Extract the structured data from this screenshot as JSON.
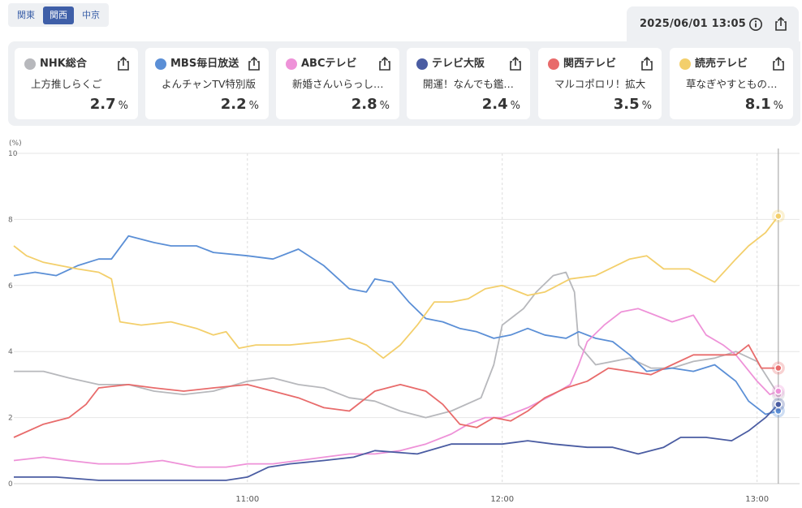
{
  "region_tabs": [
    {
      "label": "関東",
      "active": false
    },
    {
      "label": "関西",
      "active": true
    },
    {
      "label": "中京",
      "active": false
    }
  ],
  "timestamp": "2025/06/01 13:05",
  "icons": {
    "info": "info-icon",
    "share": "share-icon"
  },
  "channels": [
    {
      "name": "NHK総合",
      "program": "上方推しらくご",
      "value": "2.7",
      "unit": "%",
      "color": "#b7b8bc"
    },
    {
      "name": "MBS毎日放送",
      "program": "よんチャンTV特別版",
      "value": "2.2",
      "unit": "%",
      "color": "#5b8fd6"
    },
    {
      "name": "ABCテレビ",
      "program": "新婚さんいらっしゃい！",
      "value": "2.8",
      "unit": "%",
      "color": "#ee92d8"
    },
    {
      "name": "テレビ大阪",
      "program": "開運！なんでも鑑定団",
      "value": "2.4",
      "unit": "%",
      "color": "#4a5ca2"
    },
    {
      "name": "関西テレビ",
      "program": "マルコポロリ！拡大",
      "value": "3.5",
      "unit": "%",
      "color": "#e86b6b"
    },
    {
      "name": "読売テレビ",
      "program": "草なぎやすとものうたコント",
      "value": "8.1",
      "unit": "%",
      "color": "#f3cf6b"
    }
  ],
  "chart_data": {
    "type": "line",
    "ylabel": "(%)",
    "ylim": [
      0,
      10
    ],
    "yticks": [
      "0",
      "2",
      "4",
      "6",
      "8",
      "10"
    ],
    "xlim": [
      "10:05",
      "13:10"
    ],
    "xticks": [
      {
        "t": "11:00",
        "label": "11:00"
      },
      {
        "t": "12:00",
        "label": "12:00"
      },
      {
        "t": "13:00",
        "label": "13:00"
      }
    ],
    "current_time": "13:05",
    "series": [
      {
        "name": "NHK総合",
        "color": "#b7b8bc",
        "points": [
          [
            "10:05",
            3.4
          ],
          [
            "10:12",
            3.4
          ],
          [
            "10:18",
            3.2
          ],
          [
            "10:25",
            3.0
          ],
          [
            "10:32",
            3.0
          ],
          [
            "10:38",
            2.8
          ],
          [
            "10:45",
            2.7
          ],
          [
            "10:52",
            2.8
          ],
          [
            "11:00",
            3.1
          ],
          [
            "11:06",
            3.2
          ],
          [
            "11:12",
            3.0
          ],
          [
            "11:18",
            2.9
          ],
          [
            "11:24",
            2.6
          ],
          [
            "11:30",
            2.5
          ],
          [
            "11:36",
            2.2
          ],
          [
            "11:42",
            2.0
          ],
          [
            "11:48",
            2.2
          ],
          [
            "11:55",
            2.6
          ],
          [
            "11:58",
            3.6
          ],
          [
            "12:00",
            4.8
          ],
          [
            "12:05",
            5.3
          ],
          [
            "12:08",
            5.8
          ],
          [
            "12:12",
            6.3
          ],
          [
            "12:15",
            6.4
          ],
          [
            "12:17",
            5.8
          ],
          [
            "12:18",
            4.2
          ],
          [
            "12:22",
            3.6
          ],
          [
            "12:30",
            3.8
          ],
          [
            "12:35",
            3.5
          ],
          [
            "12:40",
            3.5
          ],
          [
            "12:45",
            3.7
          ],
          [
            "12:50",
            3.8
          ],
          [
            "12:55",
            4.0
          ],
          [
            "13:00",
            3.7
          ],
          [
            "13:05",
            2.7
          ]
        ]
      },
      {
        "name": "MBS毎日放送",
        "color": "#5b8fd6",
        "points": [
          [
            "10:05",
            6.3
          ],
          [
            "10:10",
            6.4
          ],
          [
            "10:15",
            6.3
          ],
          [
            "10:20",
            6.6
          ],
          [
            "10:25",
            6.8
          ],
          [
            "10:28",
            6.8
          ],
          [
            "10:32",
            7.5
          ],
          [
            "10:38",
            7.3
          ],
          [
            "10:42",
            7.2
          ],
          [
            "10:48",
            7.2
          ],
          [
            "10:52",
            7.0
          ],
          [
            "11:00",
            6.9
          ],
          [
            "11:06",
            6.8
          ],
          [
            "11:12",
            7.1
          ],
          [
            "11:18",
            6.6
          ],
          [
            "11:24",
            5.9
          ],
          [
            "11:28",
            5.8
          ],
          [
            "11:30",
            6.2
          ],
          [
            "11:34",
            6.1
          ],
          [
            "11:38",
            5.5
          ],
          [
            "11:42",
            5.0
          ],
          [
            "11:46",
            4.9
          ],
          [
            "11:50",
            4.7
          ],
          [
            "11:54",
            4.6
          ],
          [
            "11:58",
            4.4
          ],
          [
            "12:02",
            4.5
          ],
          [
            "12:06",
            4.7
          ],
          [
            "12:10",
            4.5
          ],
          [
            "12:15",
            4.4
          ],
          [
            "12:18",
            4.6
          ],
          [
            "12:22",
            4.4
          ],
          [
            "12:26",
            4.3
          ],
          [
            "12:30",
            3.9
          ],
          [
            "12:34",
            3.4
          ],
          [
            "12:40",
            3.5
          ],
          [
            "12:45",
            3.4
          ],
          [
            "12:50",
            3.6
          ],
          [
            "12:55",
            3.1
          ],
          [
            "12:58",
            2.5
          ],
          [
            "13:02",
            2.1
          ],
          [
            "13:05",
            2.2
          ]
        ]
      },
      {
        "name": "ABCテレビ",
        "color": "#ee92d8",
        "points": [
          [
            "10:05",
            0.7
          ],
          [
            "10:12",
            0.8
          ],
          [
            "10:18",
            0.7
          ],
          [
            "10:25",
            0.6
          ],
          [
            "10:32",
            0.6
          ],
          [
            "10:40",
            0.7
          ],
          [
            "10:48",
            0.5
          ],
          [
            "10:55",
            0.5
          ],
          [
            "11:00",
            0.6
          ],
          [
            "11:06",
            0.6
          ],
          [
            "11:12",
            0.7
          ],
          [
            "11:18",
            0.8
          ],
          [
            "11:24",
            0.9
          ],
          [
            "11:30",
            0.9
          ],
          [
            "11:36",
            1.0
          ],
          [
            "11:42",
            1.2
          ],
          [
            "11:48",
            1.5
          ],
          [
            "11:52",
            1.8
          ],
          [
            "11:56",
            2.0
          ],
          [
            "12:00",
            2.0
          ],
          [
            "12:06",
            2.3
          ],
          [
            "12:12",
            2.7
          ],
          [
            "12:16",
            3.0
          ],
          [
            "12:18",
            3.6
          ],
          [
            "12:20",
            4.3
          ],
          [
            "12:24",
            4.8
          ],
          [
            "12:28",
            5.2
          ],
          [
            "12:32",
            5.3
          ],
          [
            "12:36",
            5.1
          ],
          [
            "12:40",
            4.9
          ],
          [
            "12:45",
            5.1
          ],
          [
            "12:48",
            4.5
          ],
          [
            "12:52",
            4.2
          ],
          [
            "12:55",
            3.9
          ],
          [
            "13:00",
            3.1
          ],
          [
            "13:03",
            2.7
          ],
          [
            "13:05",
            2.8
          ]
        ]
      },
      {
        "name": "テレビ大阪",
        "color": "#4a5ca2",
        "points": [
          [
            "10:05",
            0.2
          ],
          [
            "10:15",
            0.2
          ],
          [
            "10:25",
            0.1
          ],
          [
            "10:35",
            0.1
          ],
          [
            "10:45",
            0.1
          ],
          [
            "10:55",
            0.1
          ],
          [
            "11:00",
            0.2
          ],
          [
            "11:05",
            0.5
          ],
          [
            "11:10",
            0.6
          ],
          [
            "11:18",
            0.7
          ],
          [
            "11:25",
            0.8
          ],
          [
            "11:30",
            1.0
          ],
          [
            "11:40",
            0.9
          ],
          [
            "11:48",
            1.2
          ],
          [
            "11:55",
            1.2
          ],
          [
            "12:00",
            1.2
          ],
          [
            "12:06",
            1.3
          ],
          [
            "12:12",
            1.2
          ],
          [
            "12:20",
            1.1
          ],
          [
            "12:26",
            1.1
          ],
          [
            "12:32",
            0.9
          ],
          [
            "12:38",
            1.1
          ],
          [
            "12:42",
            1.4
          ],
          [
            "12:48",
            1.4
          ],
          [
            "12:54",
            1.3
          ],
          [
            "12:58",
            1.6
          ],
          [
            "13:02",
            2.0
          ],
          [
            "13:05",
            2.4
          ]
        ]
      },
      {
        "name": "関西テレビ",
        "color": "#e86b6b",
        "points": [
          [
            "10:05",
            1.4
          ],
          [
            "10:12",
            1.8
          ],
          [
            "10:18",
            2.0
          ],
          [
            "10:22",
            2.4
          ],
          [
            "10:25",
            2.9
          ],
          [
            "10:32",
            3.0
          ],
          [
            "10:38",
            2.9
          ],
          [
            "10:45",
            2.8
          ],
          [
            "10:52",
            2.9
          ],
          [
            "11:00",
            3.0
          ],
          [
            "11:06",
            2.8
          ],
          [
            "11:12",
            2.6
          ],
          [
            "11:18",
            2.3
          ],
          [
            "11:24",
            2.2
          ],
          [
            "11:30",
            2.8
          ],
          [
            "11:36",
            3.0
          ],
          [
            "11:42",
            2.8
          ],
          [
            "11:46",
            2.4
          ],
          [
            "11:50",
            1.8
          ],
          [
            "11:54",
            1.7
          ],
          [
            "11:58",
            2.0
          ],
          [
            "12:02",
            1.9
          ],
          [
            "12:06",
            2.2
          ],
          [
            "12:10",
            2.6
          ],
          [
            "12:15",
            2.9
          ],
          [
            "12:20",
            3.1
          ],
          [
            "12:25",
            3.5
          ],
          [
            "12:30",
            3.4
          ],
          [
            "12:35",
            3.3
          ],
          [
            "12:40",
            3.6
          ],
          [
            "12:45",
            3.9
          ],
          [
            "12:50",
            3.9
          ],
          [
            "12:55",
            3.9
          ],
          [
            "12:58",
            4.2
          ],
          [
            "13:01",
            3.5
          ],
          [
            "13:05",
            3.5
          ]
        ]
      },
      {
        "name": "読売テレビ",
        "color": "#f3cf6b",
        "points": [
          [
            "10:05",
            7.2
          ],
          [
            "10:08",
            6.9
          ],
          [
            "10:12",
            6.7
          ],
          [
            "10:16",
            6.6
          ],
          [
            "10:20",
            6.5
          ],
          [
            "10:25",
            6.4
          ],
          [
            "10:28",
            6.2
          ],
          [
            "10:30",
            4.9
          ],
          [
            "10:35",
            4.8
          ],
          [
            "10:42",
            4.9
          ],
          [
            "10:48",
            4.7
          ],
          [
            "10:52",
            4.5
          ],
          [
            "10:55",
            4.6
          ],
          [
            "10:58",
            4.1
          ],
          [
            "11:02",
            4.2
          ],
          [
            "11:10",
            4.2
          ],
          [
            "11:18",
            4.3
          ],
          [
            "11:24",
            4.4
          ],
          [
            "11:28",
            4.2
          ],
          [
            "11:32",
            3.8
          ],
          [
            "11:36",
            4.2
          ],
          [
            "11:40",
            4.8
          ],
          [
            "11:44",
            5.5
          ],
          [
            "11:48",
            5.5
          ],
          [
            "11:52",
            5.6
          ],
          [
            "11:56",
            5.9
          ],
          [
            "12:00",
            6.0
          ],
          [
            "12:06",
            5.7
          ],
          [
            "12:10",
            5.8
          ],
          [
            "12:16",
            6.2
          ],
          [
            "12:22",
            6.3
          ],
          [
            "12:30",
            6.8
          ],
          [
            "12:34",
            6.9
          ],
          [
            "12:38",
            6.5
          ],
          [
            "12:44",
            6.5
          ],
          [
            "12:50",
            6.1
          ],
          [
            "12:55",
            6.8
          ],
          [
            "12:58",
            7.2
          ],
          [
            "13:02",
            7.6
          ],
          [
            "13:05",
            8.1
          ]
        ]
      }
    ]
  }
}
